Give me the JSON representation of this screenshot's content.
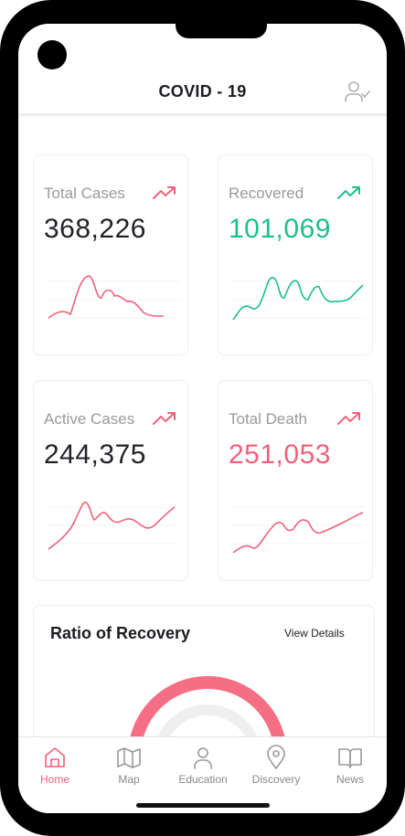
{
  "header": {
    "title": "COVID - 19",
    "profile_icon": "user-check-icon"
  },
  "cards": [
    {
      "label": "Total Cases",
      "value": "368,226",
      "value_color": "#222228",
      "trend_color": "#f0627a",
      "trend_icon": "trending-up-icon"
    },
    {
      "label": "Recovered",
      "value": "101,069",
      "value_color": "#1dbf8a",
      "trend_color": "#1dbf8a",
      "trend_icon": "trending-up-icon"
    },
    {
      "label": "Active Cases",
      "value": "244,375",
      "value_color": "#222228",
      "trend_color": "#f0627a",
      "trend_icon": "trending-up-icon"
    },
    {
      "label": "Total Death",
      "value": "251,053",
      "value_color": "#f0627a",
      "trend_color": "#f0627a",
      "trend_icon": "trending-up-icon"
    }
  ],
  "ratio": {
    "title": "Ratio of Recovery",
    "link": "View Details",
    "gauge_color": "#f46e84"
  },
  "tabs": [
    {
      "label": "Home",
      "icon": "home-icon",
      "active": true
    },
    {
      "label": "Map",
      "icon": "map-icon",
      "active": false
    },
    {
      "label": "Education",
      "icon": "user-icon",
      "active": false
    },
    {
      "label": "Discovery",
      "icon": "map-pin-icon",
      "active": false
    },
    {
      "label": "News",
      "icon": "book-open-icon",
      "active": false
    }
  ],
  "colors": {
    "accent_red": "#f0627a",
    "accent_green": "#1dbf8a"
  }
}
